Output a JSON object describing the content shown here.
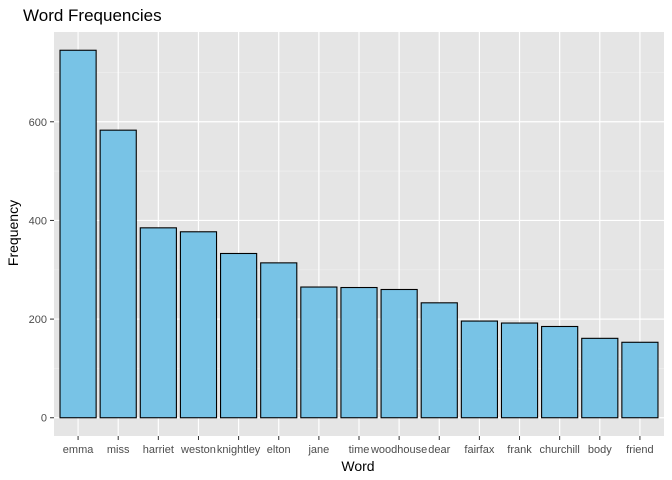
{
  "chart_data": {
    "type": "bar",
    "title": "Word Frequencies",
    "xlabel": "Word",
    "ylabel": "Frequency",
    "categories": [
      "emma",
      "miss",
      "harriet",
      "weston",
      "knightley",
      "elton",
      "jane",
      "time",
      "woodhouse",
      "dear",
      "fairfax",
      "frank",
      "churchill",
      "body",
      "friend"
    ],
    "values": [
      745,
      583,
      385,
      377,
      333,
      314,
      265,
      264,
      260,
      233,
      196,
      192,
      185,
      161,
      153
    ],
    "yticks": [
      0,
      200,
      400,
      600
    ],
    "ylim": [
      -37,
      782
    ],
    "grid": true,
    "legend": "none",
    "colors": {
      "panel_background": "#e5e5e5",
      "grid_major": "#ffffff",
      "grid_minor": "#f0f0f0",
      "bar_fill": "#78c3e6",
      "bar_stroke": "#000000",
      "tick_label": "#4d4d4d"
    }
  }
}
